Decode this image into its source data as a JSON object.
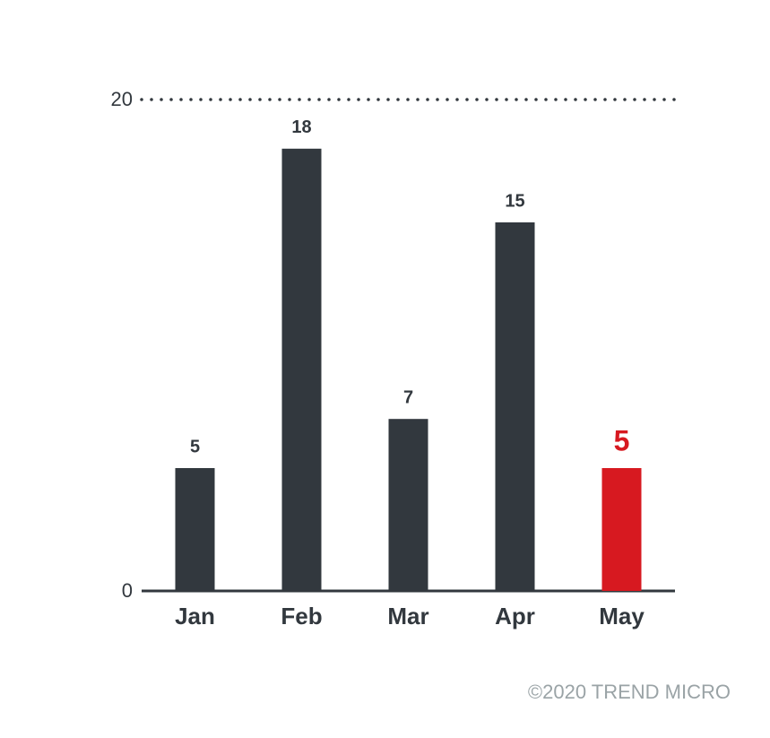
{
  "chart_data": {
    "type": "bar",
    "categories": [
      "Jan",
      "Feb",
      "Mar",
      "Apr",
      "May"
    ],
    "values": [
      5,
      18,
      7,
      15,
      5
    ],
    "colors": [
      "#32383e",
      "#32383e",
      "#32383e",
      "#32383e",
      "#d71920"
    ],
    "ylim": [
      0,
      20
    ],
    "yticks": [
      0,
      20
    ],
    "grid": true,
    "footer": "©2020 TREND MICRO"
  }
}
